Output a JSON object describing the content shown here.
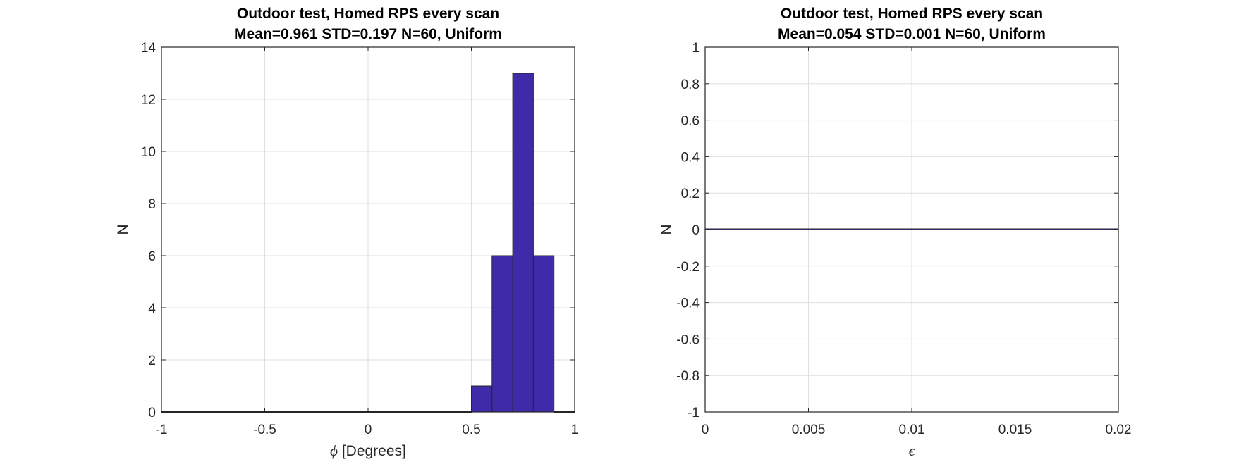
{
  "chart_data": [
    {
      "type": "bar",
      "title": "Outdoor test, Homed RPS every scan",
      "subtitle": "Mean=0.961 STD=0.197 N=60, Uniform",
      "xlabel_symbol": "ϕ",
      "xlabel_text": " [Degrees]",
      "ylabel": "N",
      "xlim": [
        -1,
        1
      ],
      "ylim": [
        0,
        14
      ],
      "xticks": [
        -1,
        -0.5,
        0,
        0.5,
        1
      ],
      "xtick_labels": [
        "-1",
        "-0.5",
        "0",
        "0.5",
        "1"
      ],
      "yticks": [
        0,
        2,
        4,
        6,
        8,
        10,
        12,
        14
      ],
      "ytick_labels": [
        "0",
        "2",
        "4",
        "6",
        "8",
        "10",
        "12",
        "14"
      ],
      "grid": true,
      "bin_edges": [
        -1,
        0.5,
        0.6,
        0.7,
        0.8,
        0.9,
        1
      ],
      "values": [
        0,
        1,
        6,
        13,
        6,
        0
      ],
      "bar_color": "#3f2baa",
      "edge_color": "#262626"
    },
    {
      "type": "bar",
      "title": "Outdoor test, Homed RPS every scan",
      "subtitle": "Mean=0.054 STD=0.001 N=60, Uniform",
      "xlabel_symbol": "ϵ",
      "xlabel_text": "",
      "ylabel": "N",
      "xlim": [
        0,
        0.02
      ],
      "ylim": [
        -1,
        1
      ],
      "xticks": [
        0,
        0.005,
        0.01,
        0.015,
        0.02
      ],
      "xtick_labels": [
        "0",
        "0.005",
        "0.01",
        "0.015",
        "0.02"
      ],
      "yticks": [
        -1,
        -0.8,
        -0.6,
        -0.4,
        -0.2,
        0,
        0.2,
        0.4,
        0.6,
        0.8,
        1
      ],
      "ytick_labels": [
        "-1",
        "-0.8",
        "-0.6",
        "-0.4",
        "-0.2",
        "0",
        "0.2",
        "0.4",
        "0.6",
        "0.8",
        "1"
      ],
      "grid": true,
      "bin_edges": [
        0,
        0.02
      ],
      "values": [
        0
      ],
      "bar_color": "#3f2baa",
      "edge_color": "#262626"
    }
  ]
}
